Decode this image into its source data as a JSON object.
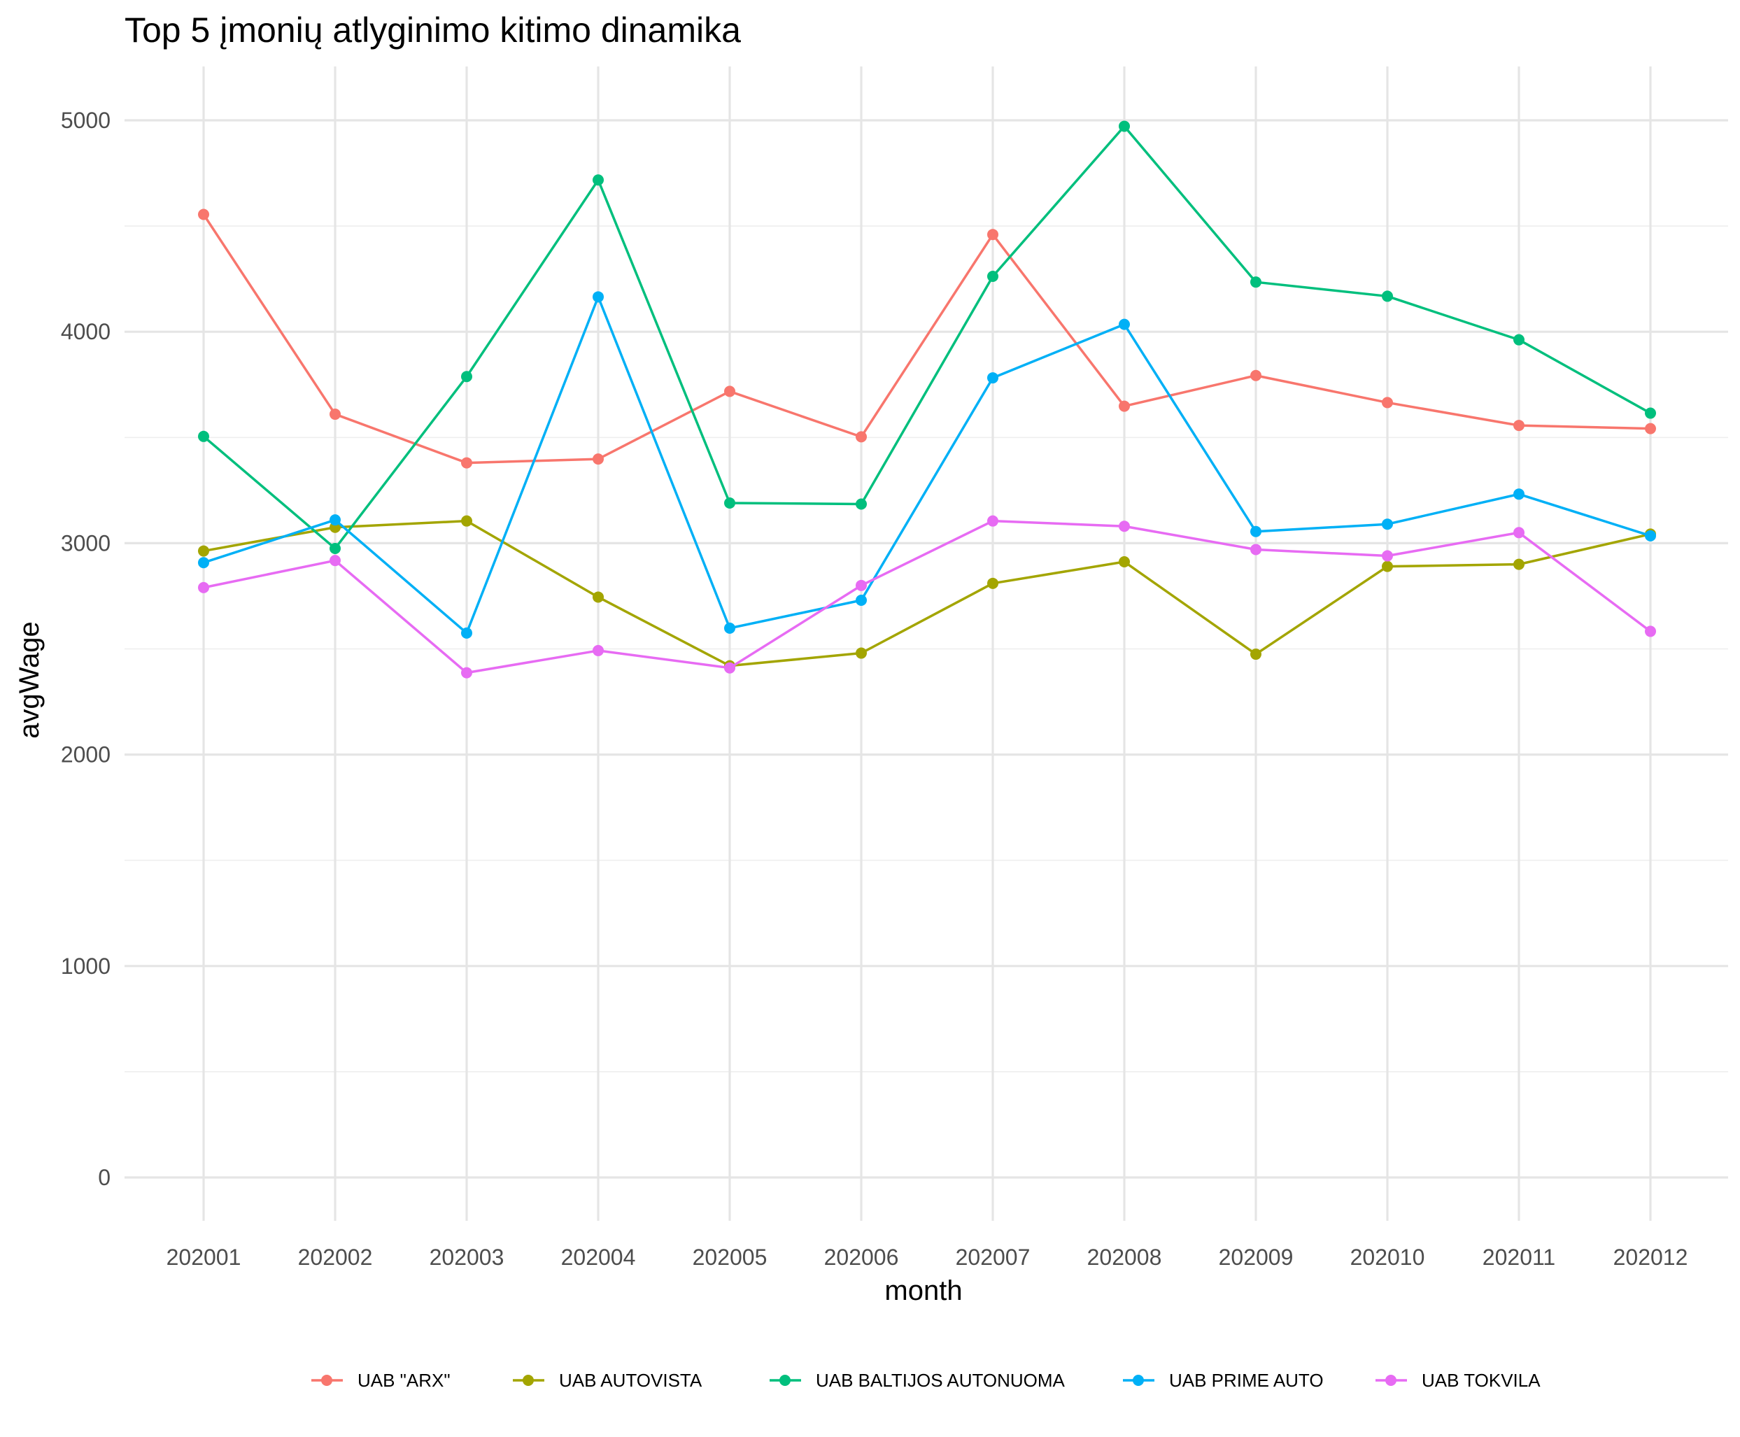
{
  "chart_data": {
    "type": "line",
    "title": "Top 5 įmonių atlyginimo kitimo dinamika",
    "xlabel": "month",
    "ylabel": "avgWage",
    "categories": [
      "202001",
      "202002",
      "202003",
      "202004",
      "202005",
      "202006",
      "202007",
      "202008",
      "202009",
      "202010",
      "202011",
      "202012"
    ],
    "ylim": [
      -250,
      5250
    ],
    "yticks": [
      0,
      1000,
      2000,
      3000,
      4000,
      5000
    ],
    "grid": true,
    "legend_position": "bottom",
    "series": [
      {
        "name": "UAB \"ARX\"",
        "color": "#F8766D",
        "values": [
          4555,
          3610,
          3380,
          3398,
          3718,
          3503,
          4460,
          3648,
          3793,
          3665,
          3557,
          3542
        ]
      },
      {
        "name": "UAB AUTOVISTA",
        "color": "#A3A500",
        "values": [
          2963,
          3075,
          3105,
          2745,
          2420,
          2480,
          2810,
          2912,
          2475,
          2890,
          2900,
          3043
        ]
      },
      {
        "name": "UAB BALTIJOS AUTONUOMA",
        "color": "#00BF7D",
        "values": [
          3505,
          2975,
          3788,
          4718,
          3190,
          3185,
          4262,
          4972,
          4235,
          4168,
          3962,
          3615
        ]
      },
      {
        "name": "UAB PRIME AUTO",
        "color": "#00B0F6",
        "values": [
          2908,
          3110,
          2575,
          4165,
          2598,
          2730,
          3782,
          4035,
          3055,
          3090,
          3232,
          3035
        ]
      },
      {
        "name": "UAB TOKVILA",
        "color": "#E76BF3",
        "values": [
          2790,
          2918,
          2387,
          2492,
          2410,
          2800,
          3105,
          3080,
          2970,
          2940,
          3050,
          2583
        ]
      }
    ]
  }
}
